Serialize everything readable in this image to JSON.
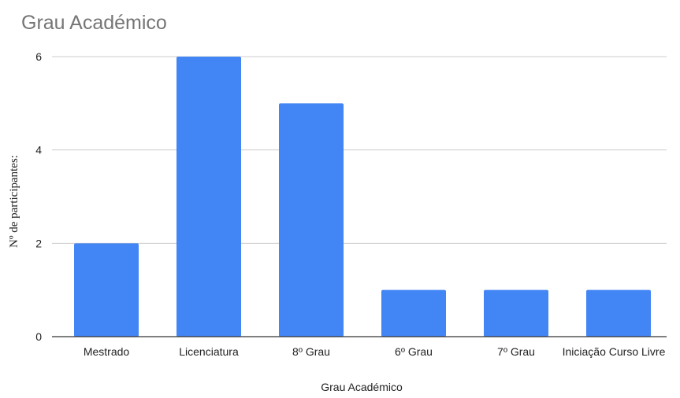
{
  "chart_data": {
    "type": "bar",
    "title": "Grau Académico",
    "xlabel": "Grau Académico",
    "ylabel": "Nº de participantes:",
    "categories": [
      "Mestrado",
      "Licenciatura",
      "8º Grau",
      "6º Grau",
      "7º Grau",
      "Iniciação Curso Livre"
    ],
    "values": [
      2,
      6,
      5,
      1,
      1,
      1
    ],
    "ylim": [
      0,
      6
    ],
    "yticks": [
      "0",
      "2",
      "4",
      "6"
    ],
    "grid": true,
    "bar_color": "#4285f4"
  }
}
